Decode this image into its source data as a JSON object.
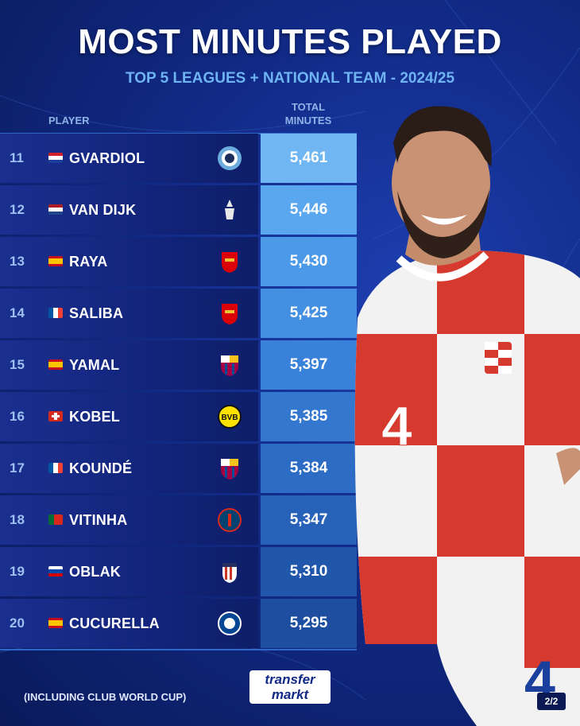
{
  "header": {
    "title": "MOST MINUTES PLAYED",
    "subtitle": "TOP 5 LEAGUES + NATIONAL TEAM - 2024/25"
  },
  "columns": {
    "player": "PLAYER",
    "total_line1": "TOTAL",
    "total_line2": "MINUTES"
  },
  "rows": [
    {
      "rank": "11",
      "name": "GVARDIOL",
      "minutes": "5,461",
      "flag": "croatia",
      "club": "manchester-city-icon",
      "value_color": "#6fb6f3"
    },
    {
      "rank": "12",
      "name": "VAN DIJK",
      "minutes": "5,446",
      "flag": "netherlands",
      "club": "liverpool-icon",
      "value_color": "#5aa7ef"
    },
    {
      "rank": "13",
      "name": "RAYA",
      "minutes": "5,430",
      "flag": "spain",
      "club": "arsenal-icon",
      "value_color": "#4c99e8"
    },
    {
      "rank": "14",
      "name": "SALIBA",
      "minutes": "5,425",
      "flag": "france",
      "club": "arsenal-icon",
      "value_color": "#438fe2"
    },
    {
      "rank": "15",
      "name": "YAMAL",
      "minutes": "5,397",
      "flag": "spain",
      "club": "barcelona-icon",
      "value_color": "#3a82d9"
    },
    {
      "rank": "16",
      "name": "KOBEL",
      "minutes": "5,385",
      "flag": "switzerland",
      "club": "dortmund-icon",
      "value_color": "#3377cf"
    },
    {
      "rank": "17",
      "name": "KOUNDÉ",
      "minutes": "5,384",
      "flag": "france",
      "club": "barcelona-icon",
      "value_color": "#2c6cc4"
    },
    {
      "rank": "18",
      "name": "VITINHA",
      "minutes": "5,347",
      "flag": "portugal",
      "club": "psg-icon",
      "value_color": "#2762b8"
    },
    {
      "rank": "19",
      "name": "OBLAK",
      "minutes": "5,310",
      "flag": "slovenia",
      "club": "atletico-icon",
      "value_color": "#2157ab"
    },
    {
      "rank": "20",
      "name": "CUCURELLA",
      "minutes": "5,295",
      "flag": "spain",
      "club": "chelsea-icon",
      "value_color": "#1d4e9f"
    }
  ],
  "footer": {
    "note": "(INCLUDING CLUB WORLD CUP)",
    "logo_line1": "transfer",
    "logo_line2": "markt",
    "page": "2/2"
  },
  "colors": {
    "background": "#112a86",
    "subtitle": "#6fb4f2",
    "divider": "#2f67c8"
  }
}
